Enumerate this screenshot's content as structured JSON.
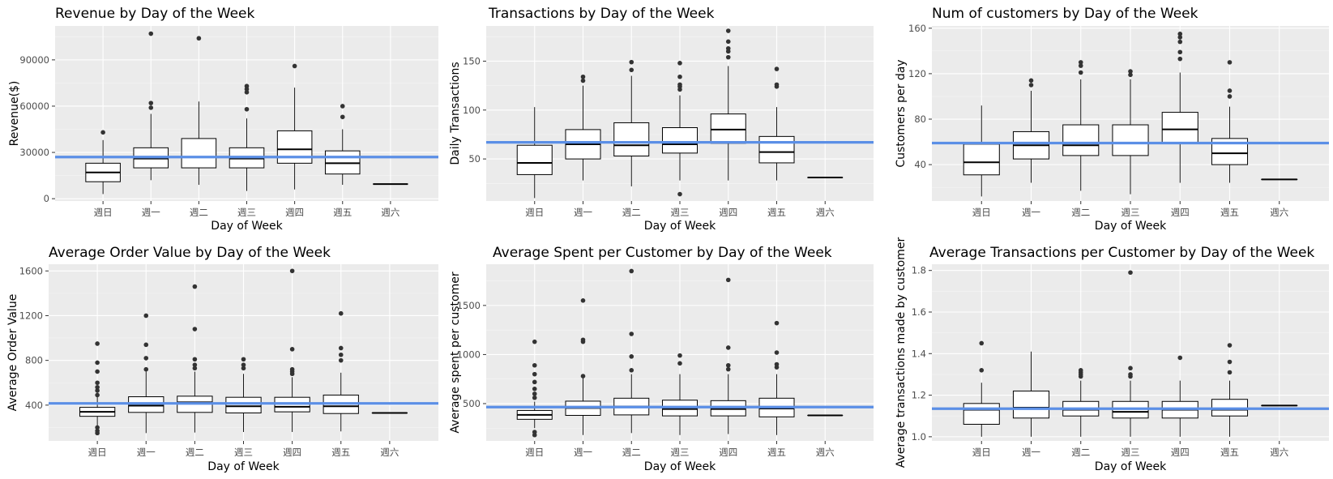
{
  "colors": {
    "panel_bg": "#EBEBEB",
    "grid_major": "#FFFFFF",
    "mean_line": "#5B8FE6",
    "box_stroke": "#000000",
    "outlier": "#333333"
  },
  "chart_data": [
    {
      "type": "boxplot",
      "title": "Revenue by Day of the Week",
      "xlabel": "Day of Week",
      "ylabel": "Revenue($)",
      "categories": [
        "週日",
        "週一",
        "週二",
        "週三",
        "週四",
        "週五",
        "週六"
      ],
      "yticks": [
        0,
        30000,
        60000,
        90000
      ],
      "ytick_labels": [
        "0",
        "30000",
        "60000",
        "90000"
      ],
      "ylim": [
        -1500,
        112000
      ],
      "grid": true,
      "reference_line": 27000,
      "boxes": [
        {
          "min": 3000,
          "q1": 11000,
          "median": 17000,
          "q3": 23000,
          "max": 38000,
          "outliers": [
            43000
          ]
        },
        {
          "min": 12000,
          "q1": 20000,
          "median": 26000,
          "q3": 33000,
          "max": 55000,
          "outliers": [
            59000,
            62000,
            107000
          ]
        },
        {
          "min": 9000,
          "q1": 20000,
          "median": 27000,
          "q3": 39000,
          "max": 63000,
          "outliers": [
            104000
          ]
        },
        {
          "min": 5000,
          "q1": 20000,
          "median": 26000,
          "q3": 33000,
          "max": 52000,
          "outliers": [
            58000,
            69000,
            71000,
            73000
          ]
        },
        {
          "min": 6000,
          "q1": 23000,
          "median": 32000,
          "q3": 44000,
          "max": 72000,
          "outliers": [
            86000
          ]
        },
        {
          "min": 9000,
          "q1": 16000,
          "median": 23000,
          "q3": 31000,
          "max": 45000,
          "outliers": [
            53000,
            60000
          ]
        },
        {
          "min": 9500,
          "q1": 9500,
          "median": 9500,
          "q3": 9500,
          "max": 9500,
          "outliers": []
        }
      ]
    },
    {
      "type": "boxplot",
      "title": "Transactions by Day of the Week",
      "xlabel": "Day of Week",
      "ylabel": "Daily Transactions",
      "categories": [
        "週日",
        "週一",
        "週二",
        "週三",
        "週四",
        "週五",
        "週六"
      ],
      "yticks": [
        50,
        100,
        150
      ],
      "ytick_labels": [
        "50",
        "100",
        "150"
      ],
      "ylim": [
        7,
        186
      ],
      "grid": true,
      "reference_line": 67,
      "boxes": [
        {
          "min": 10,
          "q1": 34,
          "median": 46,
          "q3": 64,
          "max": 103,
          "outliers": []
        },
        {
          "min": 28,
          "q1": 50,
          "median": 65,
          "q3": 80,
          "max": 125,
          "outliers": [
            130,
            134
          ]
        },
        {
          "min": 22,
          "q1": 53,
          "median": 64,
          "q3": 87,
          "max": 135,
          "outliers": [
            141,
            149
          ]
        },
        {
          "min": 28,
          "q1": 56,
          "median": 65,
          "q3": 82,
          "max": 115,
          "outliers": [
            14,
            121,
            124,
            126,
            134,
            148
          ]
        },
        {
          "min": 28,
          "q1": 66,
          "median": 80,
          "q3": 96,
          "max": 145,
          "outliers": [
            154,
            160,
            163,
            170,
            181
          ]
        },
        {
          "min": 28,
          "q1": 46,
          "median": 57,
          "q3": 73,
          "max": 103,
          "outliers": [
            124,
            126,
            142
          ]
        },
        {
          "min": 31,
          "q1": 31,
          "median": 31,
          "q3": 31,
          "max": 31,
          "outliers": []
        }
      ]
    },
    {
      "type": "boxplot",
      "title": "Num of customers by Day of the Week",
      "xlabel": "Day of Week",
      "ylabel": "Customers per day",
      "categories": [
        "週日",
        "週一",
        "週二",
        "週三",
        "週四",
        "週五",
        "週六"
      ],
      "yticks": [
        40,
        80,
        120,
        160
      ],
      "ytick_labels": [
        "40",
        "80",
        "120",
        "160"
      ],
      "ylim": [
        8,
        162
      ],
      "grid": true,
      "reference_line": 59,
      "boxes": [
        {
          "min": 12,
          "q1": 31,
          "median": 42,
          "q3": 58,
          "max": 92,
          "outliers": []
        },
        {
          "min": 24,
          "q1": 45,
          "median": 57,
          "q3": 69,
          "max": 105,
          "outliers": [
            110,
            114
          ]
        },
        {
          "min": 17,
          "q1": 48,
          "median": 57,
          "q3": 75,
          "max": 115,
          "outliers": [
            121,
            127,
            130
          ]
        },
        {
          "min": 14,
          "q1": 48,
          "median": 59,
          "q3": 75,
          "max": 115,
          "outliers": [
            119,
            122
          ]
        },
        {
          "min": 24,
          "q1": 59,
          "median": 71,
          "q3": 86,
          "max": 121,
          "outliers": [
            133,
            139,
            148,
            152,
            155
          ]
        },
        {
          "min": 24,
          "q1": 40,
          "median": 50,
          "q3": 63,
          "max": 91,
          "outliers": [
            100,
            105,
            130
          ]
        },
        {
          "min": 27,
          "q1": 27,
          "median": 27,
          "q3": 27,
          "max": 27,
          "outliers": []
        }
      ]
    },
    {
      "type": "boxplot",
      "title": "Average Order Value by Day of the Week",
      "xlabel": "Day of Week",
      "ylabel": "Average Order Value",
      "categories": [
        "週日",
        "週一",
        "週二",
        "週三",
        "週四",
        "週五",
        "週六"
      ],
      "yticks": [
        400,
        800,
        1200,
        1600
      ],
      "ytick_labels": [
        "400",
        "800",
        "1200",
        "1600"
      ],
      "ylim": [
        80,
        1660
      ],
      "grid": true,
      "reference_line": 415,
      "boxes": [
        {
          "min": 215,
          "q1": 300,
          "median": 340,
          "q3": 380,
          "max": 480,
          "outliers": [
            150,
            170,
            200,
            490,
            530,
            560,
            600,
            700,
            780,
            950
          ]
        },
        {
          "min": 150,
          "q1": 335,
          "median": 395,
          "q3": 475,
          "max": 700,
          "outliers": [
            720,
            820,
            940,
            1200
          ]
        },
        {
          "min": 155,
          "q1": 335,
          "median": 425,
          "q3": 480,
          "max": 700,
          "outliers": [
            730,
            760,
            810,
            1080,
            1460
          ]
        },
        {
          "min": 160,
          "q1": 330,
          "median": 390,
          "q3": 470,
          "max": 680,
          "outliers": [
            730,
            760,
            810
          ]
        },
        {
          "min": 160,
          "q1": 340,
          "median": 385,
          "q3": 470,
          "max": 650,
          "outliers": [
            680,
            700,
            720,
            900,
            1600
          ]
        },
        {
          "min": 165,
          "q1": 325,
          "median": 390,
          "q3": 490,
          "max": 690,
          "outliers": [
            800,
            850,
            910,
            1220
          ]
        },
        {
          "min": 330,
          "q1": 330,
          "median": 330,
          "q3": 330,
          "max": 330,
          "outliers": []
        }
      ]
    },
    {
      "type": "boxplot",
      "title": "Average Spent per Customer by Day of the Week",
      "xlabel": "Day of Week",
      "ylabel": "Average spent per customer",
      "categories": [
        "週日",
        "週一",
        "週二",
        "週三",
        "週四",
        "週五",
        "週六"
      ],
      "yticks": [
        500,
        1000,
        1500
      ],
      "ytick_labels": [
        "500",
        "1000",
        "1500"
      ],
      "ylim": [
        120,
        1920
      ],
      "grid": true,
      "reference_line": 465,
      "boxes": [
        {
          "min": 250,
          "q1": 340,
          "median": 385,
          "q3": 430,
          "max": 520,
          "outliers": [
            180,
            210,
            560,
            600,
            650,
            720,
            800,
            890,
            1130
          ]
        },
        {
          "min": 180,
          "q1": 380,
          "median": 455,
          "q3": 525,
          "max": 770,
          "outliers": [
            780,
            1130,
            1150,
            1550
          ]
        },
        {
          "min": 200,
          "q1": 385,
          "median": 470,
          "q3": 555,
          "max": 800,
          "outliers": [
            840,
            980,
            1210,
            1850
          ]
        },
        {
          "min": 180,
          "q1": 375,
          "median": 445,
          "q3": 535,
          "max": 800,
          "outliers": [
            910,
            990
          ]
        },
        {
          "min": 190,
          "q1": 375,
          "median": 445,
          "q3": 530,
          "max": 800,
          "outliers": [
            850,
            890,
            1070,
            1760
          ]
        },
        {
          "min": 180,
          "q1": 365,
          "median": 450,
          "q3": 555,
          "max": 800,
          "outliers": [
            870,
            900,
            1020,
            1320
          ]
        },
        {
          "min": 380,
          "q1": 380,
          "median": 380,
          "q3": 380,
          "max": 380,
          "outliers": []
        }
      ]
    },
    {
      "type": "boxplot",
      "title": "Average Transactions per Customer by Day of the Week",
      "xlabel": "Day of Week",
      "ylabel": "Average transactions made by customer",
      "categories": [
        "週日",
        "週一",
        "週二",
        "週三",
        "週四",
        "週五",
        "週六"
      ],
      "yticks": [
        1.0,
        1.2,
        1.4,
        1.6,
        1.8
      ],
      "ytick_labels": [
        "1.0",
        "1.2",
        "1.4",
        "1.6",
        "1.8"
      ],
      "ylim": [
        0.98,
        1.83
      ],
      "grid": true,
      "reference_line": 1.135,
      "boxes": [
        {
          "min": 1.0,
          "q1": 1.06,
          "median": 1.13,
          "q3": 1.16,
          "max": 1.26,
          "outliers": [
            1.32,
            1.45
          ]
        },
        {
          "min": 1.0,
          "q1": 1.09,
          "median": 1.14,
          "q3": 1.22,
          "max": 1.41,
          "outliers": []
        },
        {
          "min": 1.0,
          "q1": 1.1,
          "median": 1.13,
          "q3": 1.17,
          "max": 1.27,
          "outliers": [
            1.29,
            1.3,
            1.31,
            1.32
          ]
        },
        {
          "min": 1.0,
          "q1": 1.09,
          "median": 1.12,
          "q3": 1.17,
          "max": 1.27,
          "outliers": [
            1.29,
            1.3,
            1.33,
            1.79
          ]
        },
        {
          "min": 1.0,
          "q1": 1.09,
          "median": 1.13,
          "q3": 1.17,
          "max": 1.27,
          "outliers": [
            1.38
          ]
        },
        {
          "min": 1.0,
          "q1": 1.1,
          "median": 1.13,
          "q3": 1.18,
          "max": 1.27,
          "outliers": [
            1.31,
            1.36,
            1.44
          ]
        },
        {
          "min": 1.15,
          "q1": 1.15,
          "median": 1.15,
          "q3": 1.15,
          "max": 1.15,
          "outliers": []
        }
      ]
    }
  ]
}
